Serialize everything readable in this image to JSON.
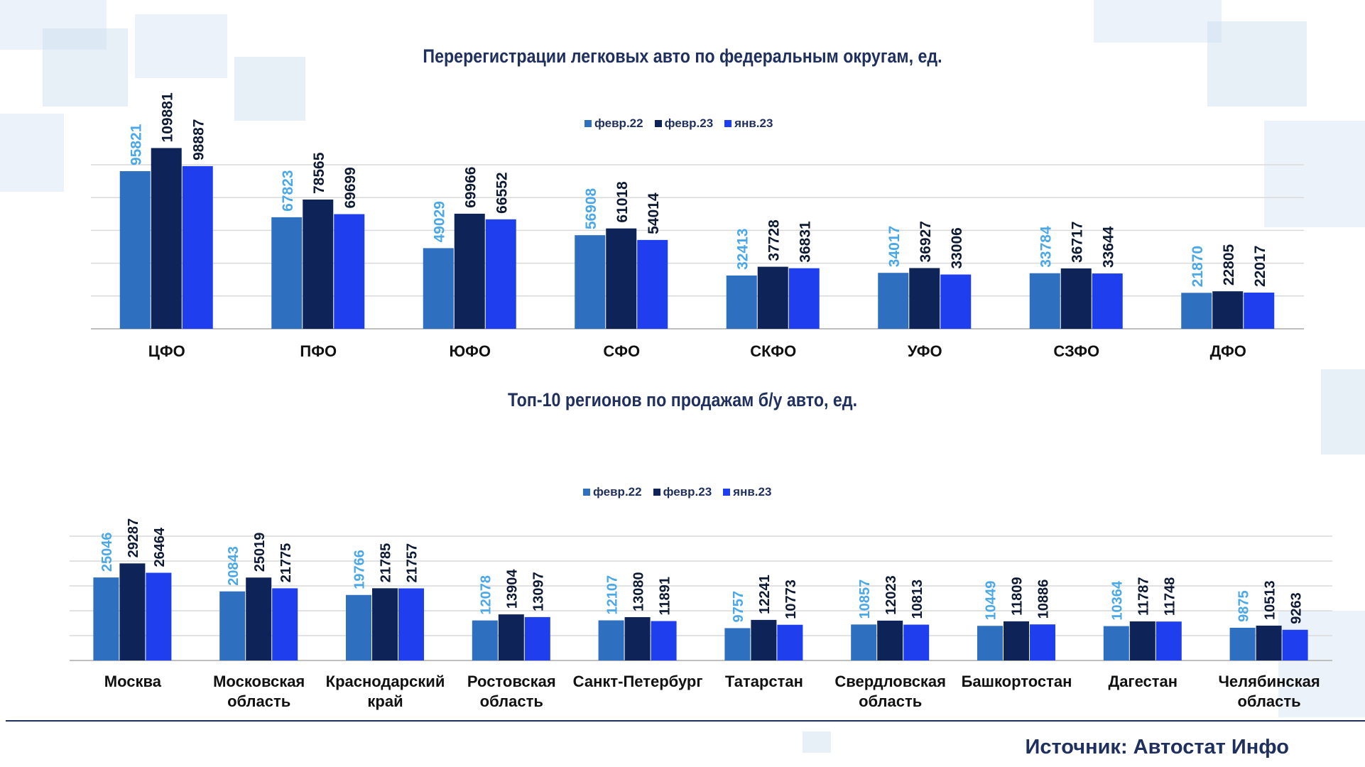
{
  "colors": {
    "s1": "#2e6fc0",
    "s2": "#0e2358",
    "s3": "#1f3fee",
    "s1_label": "#4aa8e8",
    "dark": "#0e1a33",
    "grid": "#d9d9d9"
  },
  "chart_data": [
    {
      "type": "bar",
      "title": "Перерегистрации легковых авто по федеральным округам, ед.",
      "categories": [
        "ЦФО",
        "ПФО",
        "ЮФО",
        "СФО",
        "СКФО",
        "УФО",
        "СЗФО",
        "ДФО"
      ],
      "series": [
        {
          "name": "февр.22",
          "values": [
            95821,
            67823,
            49029,
            56908,
            32413,
            34017,
            33784,
            21870
          ]
        },
        {
          "name": "февр.23",
          "values": [
            109881,
            78565,
            69966,
            61018,
            37728,
            36927,
            36717,
            22805
          ]
        },
        {
          "name": "янв.23",
          "values": [
            98887,
            69699,
            66552,
            54014,
            36831,
            33006,
            33644,
            22017
          ]
        }
      ],
      "ylim": [
        0,
        120000
      ],
      "grid": true,
      "legend": "top-center"
    },
    {
      "type": "bar",
      "title": "Топ-10 регионов по продажам б/у авто, ед.",
      "categories": [
        "Москва",
        "Московская область",
        "Краснодарский край",
        "Ростовская область",
        "Санкт-Петербург",
        "Татарстан",
        "Свердловская область",
        "Башкортостан",
        "Дагестан",
        "Челябинская область"
      ],
      "series": [
        {
          "name": "февр.22",
          "values": [
            25046,
            20843,
            19766,
            12078,
            12107,
            9757,
            10857,
            10449,
            10364,
            9875
          ]
        },
        {
          "name": "февр.23",
          "values": [
            29287,
            25019,
            21785,
            13904,
            13080,
            12241,
            12023,
            11809,
            11787,
            10513
          ]
        },
        {
          "name": "янв.23",
          "values": [
            26464,
            21775,
            21757,
            13097,
            11891,
            10773,
            10813,
            10886,
            11748,
            9263
          ]
        }
      ],
      "ylim": [
        0,
        37500
      ],
      "grid": true,
      "legend": "top-center"
    }
  ],
  "source": "Источник: Автостат Инфо"
}
